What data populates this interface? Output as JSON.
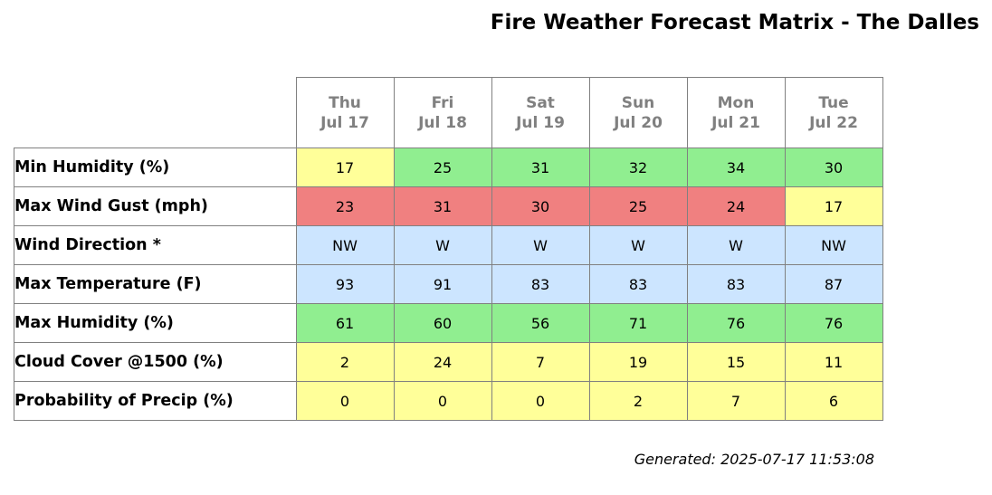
{
  "chart_data": {
    "type": "table",
    "title": "Fire Weather Forecast Matrix - The Dalles",
    "columns": [
      {
        "day": "Thu",
        "date": "Jul 17"
      },
      {
        "day": "Fri",
        "date": "Jul 18"
      },
      {
        "day": "Sat",
        "date": "Jul 19"
      },
      {
        "day": "Sun",
        "date": "Jul 20"
      },
      {
        "day": "Mon",
        "date": "Jul 21"
      },
      {
        "day": "Tue",
        "date": "Jul 22"
      }
    ],
    "rows": [
      {
        "label": "Min Humidity (%)",
        "values": [
          "17",
          "25",
          "31",
          "32",
          "34",
          "30"
        ],
        "colors": [
          "#ffff99",
          "#90ee90",
          "#90ee90",
          "#90ee90",
          "#90ee90",
          "#90ee90"
        ]
      },
      {
        "label": "Max Wind Gust (mph)",
        "values": [
          "23",
          "31",
          "30",
          "25",
          "24",
          "17"
        ],
        "colors": [
          "#f08080",
          "#f08080",
          "#f08080",
          "#f08080",
          "#f08080",
          "#ffff99"
        ]
      },
      {
        "label": "Wind Direction *",
        "values": [
          "NW",
          "W",
          "W",
          "W",
          "W",
          "NW"
        ],
        "colors": [
          "#cce5ff",
          "#cce5ff",
          "#cce5ff",
          "#cce5ff",
          "#cce5ff",
          "#cce5ff"
        ]
      },
      {
        "label": "Max Temperature (F)",
        "values": [
          "93",
          "91",
          "83",
          "83",
          "83",
          "87"
        ],
        "colors": [
          "#cce5ff",
          "#cce5ff",
          "#cce5ff",
          "#cce5ff",
          "#cce5ff",
          "#cce5ff"
        ]
      },
      {
        "label": "Max Humidity (%)",
        "values": [
          "61",
          "60",
          "56",
          "71",
          "76",
          "76"
        ],
        "colors": [
          "#90ee90",
          "#90ee90",
          "#90ee90",
          "#90ee90",
          "#90ee90",
          "#90ee90"
        ]
      },
      {
        "label": "Cloud Cover @1500 (%)",
        "values": [
          "2",
          "24",
          "7",
          "19",
          "15",
          "11"
        ],
        "colors": [
          "#ffff99",
          "#ffff99",
          "#ffff99",
          "#ffff99",
          "#ffff99",
          "#ffff99"
        ]
      },
      {
        "label": "Probability of Precip (%)",
        "values": [
          "0",
          "0",
          "0",
          "2",
          "7",
          "6"
        ],
        "colors": [
          "#ffff99",
          "#ffff99",
          "#ffff99",
          "#ffff99",
          "#ffff99",
          "#ffff99"
        ]
      }
    ],
    "footnote": "Generated: 2025-07-17 11:53:08"
  }
}
